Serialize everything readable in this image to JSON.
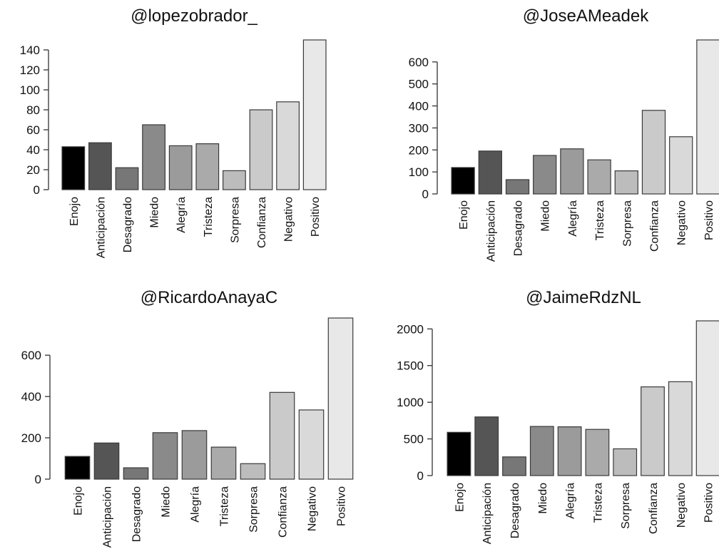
{
  "chart_data": [
    {
      "type": "bar",
      "title": "@lopezobrador_",
      "xlabel": "",
      "ylabel": "",
      "categories": [
        "Enojo",
        "Anticipación",
        "Desagrado",
        "Miedo",
        "Alegría",
        "Tristeza",
        "Sorpresa",
        "Confianza",
        "Negativo",
        "Positivo"
      ],
      "values": [
        43,
        47,
        22,
        65,
        44,
        46,
        19,
        80,
        88,
        150
      ],
      "ylim": [
        0,
        150
      ],
      "yticks": [
        0,
        20,
        40,
        60,
        80,
        100,
        120,
        140
      ],
      "grid": false,
      "bar_colors": [
        "#000000",
        "#555555",
        "#777777",
        "#8a8a8a",
        "#9b9b9b",
        "#aaaaaa",
        "#bcbcbc",
        "#cacaca",
        "#d9d9d9",
        "#e8e8e8"
      ]
    },
    {
      "type": "bar",
      "title": "@JoseAMeadek",
      "xlabel": "",
      "ylabel": "",
      "categories": [
        "Enojo",
        "Anticipación",
        "Desagrado",
        "Miedo",
        "Alegría",
        "Tristeza",
        "Sorpresa",
        "Confianza",
        "Negativo",
        "Positivo"
      ],
      "values": [
        120,
        195,
        65,
        175,
        205,
        155,
        105,
        380,
        260,
        700
      ],
      "ylim": [
        0,
        700
      ],
      "yticks": [
        0,
        100,
        200,
        300,
        400,
        500,
        600
      ],
      "grid": false,
      "bar_colors": [
        "#000000",
        "#555555",
        "#777777",
        "#8a8a8a",
        "#9b9b9b",
        "#aaaaaa",
        "#bcbcbc",
        "#cacaca",
        "#d9d9d9",
        "#e8e8e8"
      ]
    },
    {
      "type": "bar",
      "title": "@RicardoAnayaC",
      "xlabel": "",
      "ylabel": "",
      "categories": [
        "Enojo",
        "Anticipación",
        "Desagrado",
        "Miedo",
        "Alegría",
        "Tristeza",
        "Sorpresa",
        "Confianza",
        "Negativo",
        "Positivo"
      ],
      "values": [
        110,
        175,
        55,
        225,
        235,
        155,
        75,
        420,
        335,
        780
      ],
      "ylim": [
        0,
        780
      ],
      "yticks": [
        0,
        200,
        400,
        600
      ],
      "grid": false,
      "bar_colors": [
        "#000000",
        "#555555",
        "#777777",
        "#8a8a8a",
        "#9b9b9b",
        "#aaaaaa",
        "#bcbcbc",
        "#cacaca",
        "#d9d9d9",
        "#e8e8e8"
      ]
    },
    {
      "type": "bar",
      "title": "@JaimeRdzNL",
      "xlabel": "",
      "ylabel": "",
      "categories": [
        "Enojo",
        "Anticipación",
        "Desagrado",
        "Miedo",
        "Alegría",
        "Tristeza",
        "Sorpresa",
        "Confianza",
        "Negativo",
        "Positivo"
      ],
      "values": [
        590,
        800,
        255,
        670,
        665,
        630,
        365,
        1210,
        1280,
        2110
      ],
      "ylim": [
        0,
        2110
      ],
      "yticks": [
        0,
        500,
        1000,
        1500,
        2000
      ],
      "grid": false,
      "bar_colors": [
        "#000000",
        "#555555",
        "#777777",
        "#8a8a8a",
        "#9b9b9b",
        "#aaaaaa",
        "#bcbcbc",
        "#cacaca",
        "#d9d9d9",
        "#e8e8e8"
      ]
    }
  ]
}
